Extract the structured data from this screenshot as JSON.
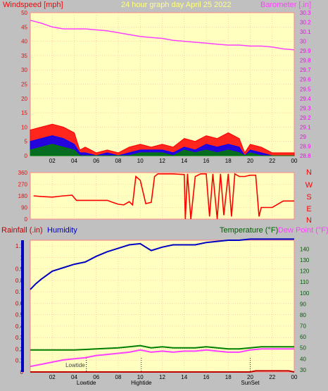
{
  "header": {
    "left": "Windspeed [mph]",
    "center": "24 hour graph day   April 25 2022",
    "right": "Barometer [.in]"
  },
  "time_ticks": [
    "02",
    "04",
    "06",
    "08",
    "10",
    "12",
    "14",
    "16",
    "18",
    "20",
    "22",
    "00"
  ],
  "colors": {
    "plot_bg": "#ffffc0",
    "grid": "#ffb0b0",
    "wind": "#ff0000",
    "gust": "#ff0000",
    "wind_blue": "#0000ff",
    "wind_green": "#008000",
    "barometer": "#ff40ff",
    "direction": "#ff0000",
    "humidity": "#0000c0",
    "temperature": "#008000",
    "dewpoint": "#ff40ff",
    "rain": "#c00000"
  },
  "chart_data": [
    {
      "type": "line",
      "name": "wind-barometer",
      "ylabel": "Windspeed [mph]",
      "y2label": "Barometer [.in]",
      "ylim": [
        0,
        50
      ],
      "yticks": [
        0,
        5,
        10,
        15,
        20,
        25,
        30,
        35,
        40,
        45,
        50
      ],
      "y2lim": [
        28.8,
        30.3
      ],
      "y2ticks": [
        "28.8",
        "28.9",
        "29",
        "29.1",
        "29.2",
        "29.3",
        "29.4",
        "29.5",
        "29.6",
        "29.7",
        "29.8",
        "29.9",
        "30",
        "30.1",
        "30.2",
        "30.3"
      ],
      "x_hours": [
        0,
        24
      ],
      "series": [
        {
          "key": "barometer",
          "axis": "right",
          "points": [
            [
              0,
              30.22
            ],
            [
              1,
              30.19
            ],
            [
              2,
              30.15
            ],
            [
              3,
              30.13
            ],
            [
              4,
              30.13
            ],
            [
              5,
              30.13
            ],
            [
              6,
              30.12
            ],
            [
              7,
              30.11
            ],
            [
              8,
              30.09
            ],
            [
              9,
              30.07
            ],
            [
              10,
              30.05
            ],
            [
              11,
              30.04
            ],
            [
              12,
              30.03
            ],
            [
              13,
              30.01
            ],
            [
              14,
              30.0
            ],
            [
              15,
              29.99
            ],
            [
              16,
              29.98
            ],
            [
              17,
              29.97
            ],
            [
              18,
              29.96
            ],
            [
              19,
              29.96
            ],
            [
              20,
              29.95
            ],
            [
              21,
              29.95
            ],
            [
              22,
              29.94
            ],
            [
              23,
              29.92
            ],
            [
              24,
              29.91
            ]
          ]
        },
        {
          "key": "gust",
          "axis": "left",
          "points": [
            [
              0,
              9
            ],
            [
              1,
              10
            ],
            [
              2,
              11
            ],
            [
              3,
              10
            ],
            [
              4,
              8
            ],
            [
              4.5,
              2
            ],
            [
              5,
              3
            ],
            [
              6,
              1
            ],
            [
              7,
              2
            ],
            [
              8,
              1
            ],
            [
              9,
              3
            ],
            [
              10,
              4
            ],
            [
              11,
              3
            ],
            [
              12,
              4
            ],
            [
              13,
              3
            ],
            [
              14,
              6
            ],
            [
              15,
              5
            ],
            [
              16,
              7
            ],
            [
              17,
              6
            ],
            [
              18,
              8
            ],
            [
              19,
              6
            ],
            [
              19.5,
              1
            ],
            [
              20,
              4
            ],
            [
              21,
              3
            ],
            [
              22,
              1
            ],
            [
              23,
              1
            ],
            [
              24,
              1
            ]
          ]
        },
        {
          "key": "wind_blue",
          "axis": "left",
          "points": [
            [
              0,
              5
            ],
            [
              1,
              6
            ],
            [
              2,
              7
            ],
            [
              3,
              6
            ],
            [
              4,
              4
            ],
            [
              4.5,
              1
            ],
            [
              5,
              1
            ],
            [
              6,
              0
            ],
            [
              7,
              1
            ],
            [
              8,
              0
            ],
            [
              9,
              1
            ],
            [
              10,
              2
            ],
            [
              11,
              2
            ],
            [
              12,
              2
            ],
            [
              13,
              1
            ],
            [
              14,
              3
            ],
            [
              15,
              2
            ],
            [
              16,
              4
            ],
            [
              17,
              3
            ],
            [
              18,
              4
            ],
            [
              19,
              3
            ],
            [
              19.5,
              0
            ],
            [
              20,
              2
            ],
            [
              21,
              1
            ],
            [
              22,
              0
            ],
            [
              23,
              0
            ],
            [
              24,
              0
            ]
          ]
        },
        {
          "key": "wind_green",
          "axis": "left",
          "points": [
            [
              0,
              2
            ],
            [
              1,
              3
            ],
            [
              2,
              4
            ],
            [
              3,
              3
            ],
            [
              4,
              2
            ],
            [
              4.5,
              0
            ],
            [
              5,
              0
            ],
            [
              6,
              0
            ],
            [
              7,
              0
            ],
            [
              8,
              0
            ],
            [
              9,
              0
            ],
            [
              10,
              1
            ],
            [
              11,
              1
            ],
            [
              12,
              1
            ],
            [
              13,
              0
            ],
            [
              14,
              2
            ],
            [
              15,
              1
            ],
            [
              16,
              2
            ],
            [
              17,
              1
            ],
            [
              18,
              2
            ],
            [
              19,
              1
            ],
            [
              19.5,
              0
            ],
            [
              20,
              1
            ],
            [
              21,
              0
            ],
            [
              22,
              0
            ],
            [
              23,
              0
            ],
            [
              24,
              0
            ]
          ]
        }
      ]
    },
    {
      "type": "line",
      "name": "wind-direction",
      "ylim": [
        0,
        360
      ],
      "yticks": [
        0,
        90,
        180,
        270,
        360
      ],
      "right_labels": [
        "N",
        "W",
        "S",
        "E",
        "N"
      ],
      "x_hours": [
        0,
        24
      ],
      "series": [
        {
          "key": "direction",
          "points": [
            [
              0.3,
              180
            ],
            [
              1,
              175
            ],
            [
              2,
              170
            ],
            [
              3,
              180
            ],
            [
              3.8,
              185
            ],
            [
              4.2,
              145
            ],
            [
              5,
              145
            ],
            [
              6,
              145
            ],
            [
              7,
              145
            ],
            [
              7.5,
              130
            ],
            [
              8,
              115
            ],
            [
              8.5,
              110
            ],
            [
              9,
              135
            ],
            [
              9.3,
              110
            ],
            [
              9.6,
              330
            ],
            [
              10,
              300
            ],
            [
              10.5,
              120
            ],
            [
              11,
              130
            ],
            [
              11.3,
              330
            ],
            [
              11.6,
              350
            ],
            [
              12,
              350
            ],
            [
              13,
              350
            ],
            [
              14,
              345
            ],
            [
              14.1,
              0
            ],
            [
              14.3,
              350
            ],
            [
              14.6,
              0
            ],
            [
              15,
              330
            ],
            [
              15.5,
              350
            ],
            [
              16,
              350
            ],
            [
              16.3,
              20
            ],
            [
              16.6,
              350
            ],
            [
              17,
              0
            ],
            [
              17.3,
              350
            ],
            [
              17.6,
              30
            ],
            [
              18,
              350
            ],
            [
              18.3,
              20
            ],
            [
              18.6,
              350
            ],
            [
              19,
              330
            ],
            [
              19.5,
              330
            ],
            [
              20,
              340
            ],
            [
              20.5,
              340
            ],
            [
              20.8,
              20
            ],
            [
              21,
              90
            ],
            [
              22,
              90
            ],
            [
              23,
              140
            ],
            [
              24,
              140
            ]
          ]
        }
      ]
    },
    {
      "type": "line",
      "name": "rain-humidity-temperature",
      "ylabel": "Rainfall (.in)",
      "ylabel2": "Humidity",
      "y2label": "Temperature (°F)",
      "y2label2": "Dew Point (°F)",
      "ylim": [
        0,
        1.15
      ],
      "yticks": [
        "0",
        "0.1",
        "0.2",
        "0.3",
        "0.4",
        "0.5",
        "0.6",
        "0.7",
        "0.8",
        "0.9",
        "1",
        "1.1"
      ],
      "y2lim": [
        28,
        148
      ],
      "y2ticks": [
        30,
        40,
        50,
        60,
        70,
        80,
        90,
        100,
        110,
        120,
        130,
        140
      ],
      "x_hours": [
        0,
        24
      ],
      "markers": [
        {
          "label": "Lowtide",
          "hour": 5.1,
          "row": "upper"
        },
        {
          "label": "Lowtide",
          "hour": 5.1,
          "row": "lower"
        },
        {
          "label": "Hightide",
          "hour": 10.1,
          "row": "lower"
        },
        {
          "label": "SunSet",
          "hour": 20.0,
          "row": "lower"
        }
      ],
      "series": [
        {
          "key": "humidity",
          "axis": "left",
          "points": [
            [
              0,
              0.72
            ],
            [
              0.5,
              0.77
            ],
            [
              1,
              0.81
            ],
            [
              2,
              0.88
            ],
            [
              3,
              0.91
            ],
            [
              4,
              0.94
            ],
            [
              5,
              0.96
            ],
            [
              6,
              1.01
            ],
            [
              7,
              1.05
            ],
            [
              8,
              1.08
            ],
            [
              9,
              1.11
            ],
            [
              10,
              1.12
            ],
            [
              10.5,
              1.09
            ],
            [
              11,
              1.06
            ],
            [
              12,
              1.09
            ],
            [
              13,
              1.11
            ],
            [
              14,
              1.11
            ],
            [
              15,
              1.11
            ],
            [
              16,
              1.13
            ],
            [
              17,
              1.14
            ],
            [
              18,
              1.15
            ],
            [
              19,
              1.15
            ],
            [
              20,
              1.16
            ],
            [
              21,
              1.16
            ],
            [
              22,
              1.16
            ],
            [
              23,
              1.16
            ],
            [
              24,
              1.16
            ]
          ]
        },
        {
          "key": "temperature",
          "axis": "right",
          "points": [
            [
              0,
              48
            ],
            [
              2,
              48
            ],
            [
              4,
              48
            ],
            [
              6,
              49
            ],
            [
              8,
              50
            ],
            [
              9,
              51
            ],
            [
              10,
              52
            ],
            [
              11,
              50
            ],
            [
              12,
              51
            ],
            [
              13,
              50
            ],
            [
              14,
              50
            ],
            [
              15,
              50
            ],
            [
              16,
              51
            ],
            [
              17,
              50
            ],
            [
              18,
              49
            ],
            [
              19,
              49
            ],
            [
              20,
              50
            ],
            [
              21,
              51
            ],
            [
              22,
              51
            ],
            [
              24,
              51
            ]
          ]
        },
        {
          "key": "dewpoint",
          "axis": "right",
          "points": [
            [
              0,
              33
            ],
            [
              1,
              35
            ],
            [
              2,
              37
            ],
            [
              3,
              39
            ],
            [
              4,
              40
            ],
            [
              5,
              41
            ],
            [
              6,
              43
            ],
            [
              7,
              44
            ],
            [
              8,
              45
            ],
            [
              9,
              46
            ],
            [
              10,
              48
            ],
            [
              11,
              46
            ],
            [
              12,
              47
            ],
            [
              13,
              46
            ],
            [
              14,
              47
            ],
            [
              15,
              47
            ],
            [
              16,
              48
            ],
            [
              17,
              47
            ],
            [
              18,
              46
            ],
            [
              19,
              46
            ],
            [
              20,
              48
            ],
            [
              21,
              49
            ],
            [
              22,
              49
            ],
            [
              24,
              49
            ]
          ]
        },
        {
          "key": "rain",
          "axis": "left",
          "points": [
            [
              0,
              0
            ],
            [
              20,
              0
            ],
            [
              20.5,
              0.01
            ],
            [
              23,
              0.01
            ],
            [
              23.5,
              0.01
            ],
            [
              24,
              0
            ]
          ]
        }
      ]
    }
  ]
}
